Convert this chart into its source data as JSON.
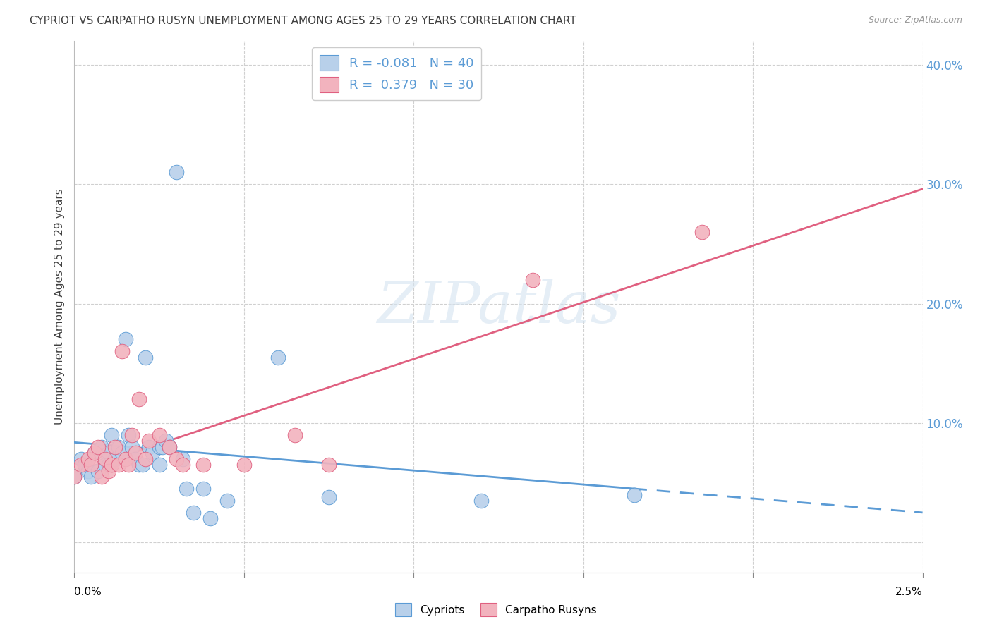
{
  "title": "CYPRIOT VS CARPATHO RUSYN UNEMPLOYMENT AMONG AGES 25 TO 29 YEARS CORRELATION CHART",
  "source": "Source: ZipAtlas.com",
  "ylabel": "Unemployment Among Ages 25 to 29 years",
  "xlim": [
    0.0,
    0.025
  ],
  "ylim": [
    -0.025,
    0.42
  ],
  "right_yticks": [
    0.0,
    0.1,
    0.2,
    0.3,
    0.4
  ],
  "right_ylabels": [
    "",
    "10.0%",
    "20.0%",
    "30.0%",
    "40.0%"
  ],
  "legend1_label": "R = -0.081   N = 40",
  "legend2_label": "R =  0.379   N = 30",
  "legend1_face": "#b8d0ea",
  "legend2_face": "#f2b3be",
  "line1_color": "#5b9bd5",
  "line2_color": "#e06080",
  "watermark_color": "#d5e3f0",
  "grid_color": "#d0d0d0",
  "bg_color": "#ffffff",
  "title_color": "#404040",
  "axis_label_color": "#5b9bd5",
  "cypriot_x": [
    0.0,
    0.0002,
    0.0003,
    0.0004,
    0.0005,
    0.0006,
    0.0007,
    0.0008,
    0.0009,
    0.001,
    0.001,
    0.0011,
    0.0012,
    0.0013,
    0.0014,
    0.0015,
    0.0016,
    0.0017,
    0.0018,
    0.0019,
    0.002,
    0.0021,
    0.0022,
    0.0023,
    0.0025,
    0.0025,
    0.0026,
    0.0027,
    0.0028,
    0.003,
    0.0032,
    0.0033,
    0.0035,
    0.0038,
    0.004,
    0.0045,
    0.006,
    0.0075,
    0.012,
    0.0165
  ],
  "cypriot_y": [
    0.055,
    0.07,
    0.065,
    0.06,
    0.055,
    0.075,
    0.06,
    0.08,
    0.065,
    0.075,
    0.065,
    0.09,
    0.07,
    0.08,
    0.075,
    0.17,
    0.09,
    0.08,
    0.07,
    0.065,
    0.065,
    0.155,
    0.08,
    0.075,
    0.08,
    0.065,
    0.08,
    0.085,
    0.08,
    0.31,
    0.07,
    0.045,
    0.025,
    0.045,
    0.02,
    0.035,
    0.155,
    0.038,
    0.035,
    0.04
  ],
  "rusyn_x": [
    0.0,
    0.0002,
    0.0004,
    0.0005,
    0.0006,
    0.0007,
    0.0008,
    0.0009,
    0.001,
    0.0011,
    0.0012,
    0.0013,
    0.0014,
    0.0015,
    0.0016,
    0.0017,
    0.0018,
    0.0019,
    0.0021,
    0.0022,
    0.0025,
    0.0028,
    0.003,
    0.0032,
    0.0038,
    0.005,
    0.0065,
    0.0075,
    0.0135,
    0.0185
  ],
  "rusyn_y": [
    0.055,
    0.065,
    0.07,
    0.065,
    0.075,
    0.08,
    0.055,
    0.07,
    0.06,
    0.065,
    0.08,
    0.065,
    0.16,
    0.07,
    0.065,
    0.09,
    0.075,
    0.12,
    0.07,
    0.085,
    0.09,
    0.08,
    0.07,
    0.065,
    0.065,
    0.065,
    0.09,
    0.065,
    0.22,
    0.26
  ]
}
